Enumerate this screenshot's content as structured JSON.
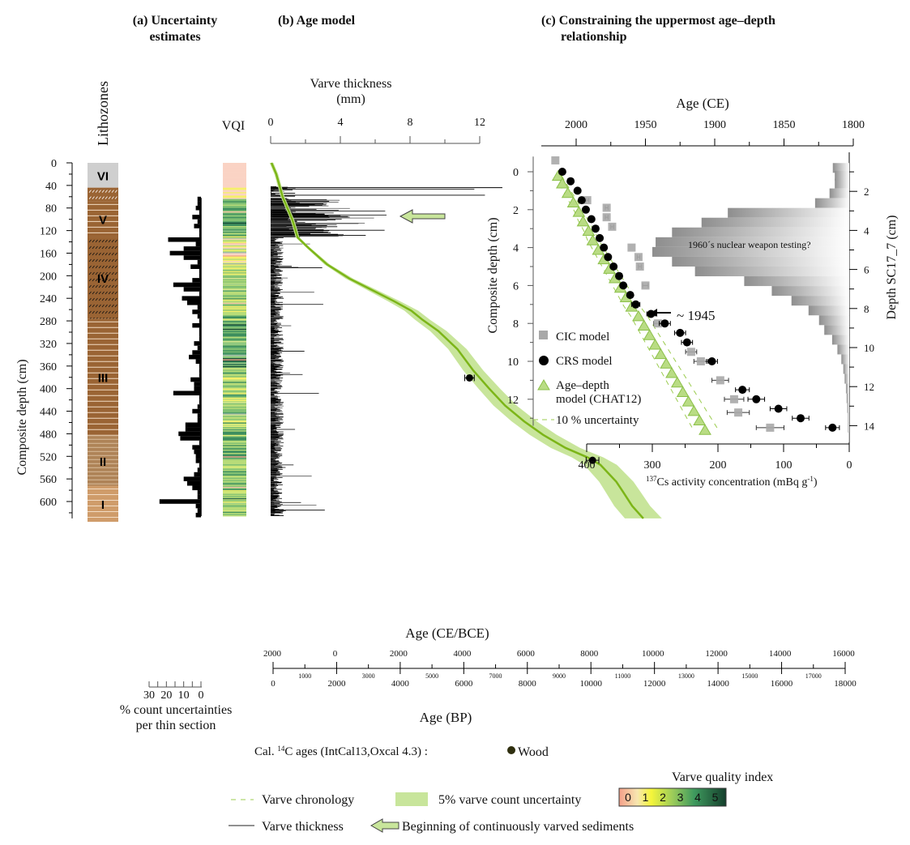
{
  "panels": {
    "a_title_line1": "(a) Uncertainty",
    "a_title_line2": "estimates",
    "b_title": "(b) Age model",
    "c_title_line1": "(c) Constraining the uppermost  age–depth",
    "c_title_line2": "relationship"
  },
  "chart_data": [
    {
      "id": "lithozones",
      "type": "table",
      "title": "Lithozones",
      "ylabel": "Composite depth (cm)",
      "ylim": [
        0,
        630
      ],
      "yticks": [
        0,
        40,
        80,
        120,
        160,
        200,
        240,
        280,
        320,
        360,
        400,
        440,
        480,
        520,
        560,
        600
      ],
      "zones": [
        {
          "label": "VI",
          "top": 0,
          "bottom": 44,
          "color": "#cfcfcf",
          "pattern": "none"
        },
        {
          "label": "",
          "top": 44,
          "bottom": 68,
          "color": "#9a6434",
          "pattern": "white-hatch"
        },
        {
          "label": "V",
          "top": 68,
          "bottom": 132,
          "color": "#9a6434",
          "pattern": "white-lines"
        },
        {
          "label": "IV",
          "top": 132,
          "bottom": 276,
          "color": "#9a6434",
          "pattern": "black-hatch"
        },
        {
          "label": "III",
          "top": 276,
          "bottom": 484,
          "color": "#9a6434",
          "pattern": "white-lines"
        },
        {
          "label": "II",
          "top": 484,
          "bottom": 572,
          "color": "#ae8357",
          "pattern": "light-lines"
        },
        {
          "label": "I",
          "top": 572,
          "bottom": 636,
          "color": "#cf9c6a",
          "pattern": "white-lines"
        }
      ]
    },
    {
      "id": "count-uncertainty",
      "type": "bar",
      "xlabel": "% count uncertainties per thin section",
      "xticks": [
        30,
        20,
        10,
        0
      ],
      "xlim": [
        30,
        0
      ],
      "values_depth_pct": [
        [
          64,
          2
        ],
        [
          72,
          2
        ],
        [
          80,
          3
        ],
        [
          88,
          1
        ],
        [
          96,
          5
        ],
        [
          104,
          2
        ],
        [
          112,
          4
        ],
        [
          120,
          1
        ],
        [
          128,
          1
        ],
        [
          136,
          19
        ],
        [
          144,
          3
        ],
        [
          152,
          10
        ],
        [
          160,
          18
        ],
        [
          168,
          10
        ],
        [
          176,
          2
        ],
        [
          184,
          6
        ],
        [
          192,
          1
        ],
        [
          200,
          1
        ],
        [
          208,
          5
        ],
        [
          216,
          16
        ],
        [
          224,
          10
        ],
        [
          232,
          1
        ],
        [
          240,
          11
        ],
        [
          248,
          8
        ],
        [
          256,
          2
        ],
        [
          264,
          5
        ],
        [
          272,
          2
        ],
        [
          280,
          1
        ],
        [
          288,
          5
        ],
        [
          296,
          1
        ],
        [
          304,
          1
        ],
        [
          312,
          1
        ],
        [
          320,
          4
        ],
        [
          328,
          2
        ],
        [
          336,
          5
        ],
        [
          344,
          7
        ],
        [
          352,
          3
        ],
        [
          360,
          1
        ],
        [
          368,
          1
        ],
        [
          376,
          1
        ],
        [
          384,
          6
        ],
        [
          392,
          4
        ],
        [
          400,
          4
        ],
        [
          408,
          16
        ],
        [
          416,
          1
        ],
        [
          424,
          1
        ],
        [
          432,
          2
        ],
        [
          440,
          5
        ],
        [
          448,
          2
        ],
        [
          456,
          2
        ],
        [
          464,
          9
        ],
        [
          472,
          9
        ],
        [
          480,
          13
        ],
        [
          488,
          12
        ],
        [
          496,
          1
        ],
        [
          504,
          5
        ],
        [
          512,
          4
        ],
        [
          520,
          3
        ],
        [
          528,
          3
        ],
        [
          536,
          1
        ],
        [
          544,
          2
        ],
        [
          552,
          4
        ],
        [
          560,
          10
        ],
        [
          568,
          8
        ],
        [
          576,
          5
        ],
        [
          584,
          2
        ],
        [
          592,
          2
        ],
        [
          600,
          24
        ],
        [
          608,
          3
        ],
        [
          616,
          2
        ],
        [
          624,
          3
        ]
      ]
    },
    {
      "id": "vqi",
      "type": "heatmap",
      "title": "VQI",
      "scale": [
        0,
        5
      ],
      "note": "Varve quality index stripes by depth, 0 = unvarved (pink) to 5 = excellent (dark green)",
      "segments_top_to_bottom": [
        {
          "from": 0,
          "to": 42,
          "vqi": 0
        },
        {
          "from": 42,
          "to": 64,
          "vqi": 0.5
        },
        {
          "from": 64,
          "to": 130,
          "vqi": 3.5
        },
        {
          "from": 130,
          "to": 200,
          "vqi": 1.5
        },
        {
          "from": 200,
          "to": 280,
          "vqi": 2.5
        },
        {
          "from": 280,
          "to": 380,
          "vqi": 3.5
        },
        {
          "from": 380,
          "to": 460,
          "vqi": 2.5
        },
        {
          "from": 460,
          "to": 560,
          "vqi": 3.0
        },
        {
          "from": 560,
          "to": 626,
          "vqi": 2.5
        }
      ]
    },
    {
      "id": "age-model",
      "type": "line",
      "title": "(b) Age model",
      "x_top_label": "Varve thickness (mm)",
      "x_top_ticks": [
        0,
        4,
        8,
        12
      ],
      "x_top_lim": [
        0,
        12
      ],
      "xlabel_ce_bce": "Age (CE/BCE)",
      "ce_bce_ticks": [
        "2000",
        "0",
        "2000",
        "4000",
        "6000",
        "8000",
        "10000",
        "12000",
        "14000",
        "16000"
      ],
      "xlabel_bp": "Age (BP)",
      "bp_major_ticks": [
        0,
        2000,
        4000,
        6000,
        8000,
        10000,
        12000,
        14000,
        16000,
        18000
      ],
      "bp_minor_ticks": [
        1000,
        3000,
        5000,
        7000,
        9000,
        11000,
        13000,
        15000,
        17000
      ],
      "xlim_bp": [
        0,
        18000
      ],
      "ylim_depth": [
        0,
        630
      ],
      "varve_chronology": [
        [
          -50,
          0
        ],
        [
          100,
          20
        ],
        [
          200,
          40
        ],
        [
          300,
          60
        ],
        [
          450,
          80
        ],
        [
          600,
          100
        ],
        [
          700,
          118
        ],
        [
          770,
          132
        ],
        [
          1100,
          150
        ],
        [
          1700,
          180
        ],
        [
          2400,
          205
        ],
        [
          3100,
          225
        ],
        [
          3800,
          245
        ],
        [
          4350,
          262
        ],
        [
          4700,
          278
        ],
        [
          5200,
          298
        ],
        [
          5800,
          330
        ],
        [
          6300,
          368
        ],
        [
          6800,
          400
        ],
        [
          7300,
          430
        ],
        [
          7900,
          458
        ],
        [
          8500,
          482
        ],
        [
          9200,
          505
        ],
        [
          9900,
          522
        ],
        [
          10300,
          535
        ],
        [
          10800,
          565
        ],
        [
          11000,
          582
        ],
        [
          11300,
          608
        ],
        [
          11650,
          630
        ]
      ],
      "uncertainty_pct": 5,
      "radiocarbon_ages": [
        {
          "material": "Wood",
          "age_bp": 6180,
          "depth": 381,
          "err_bp": 150
        },
        {
          "material": "Wood",
          "age_bp": 10050,
          "depth": 527,
          "err_bp": 200
        }
      ],
      "varve_thickness_max_mm": 13,
      "continuous_varves_start_depth": 68
    },
    {
      "id": "cs137",
      "type": "scatter",
      "title": "(c) Constraining the uppermost age–depth relationship",
      "x_top_label": "Age (CE)",
      "x_top_ticks": [
        2000,
        1950,
        1900,
        1850,
        1800
      ],
      "x_top_lim": [
        2020,
        1800
      ],
      "xlabel_bottom": "137Cs activity concentration (mBq g-1)",
      "x_bottom_ticks": [
        400,
        300,
        200,
        100,
        0
      ],
      "x_bottom_lim": [
        400,
        0
      ],
      "ylabel_left": "Composite depth (cm)",
      "yticks_left": [
        0,
        2,
        4,
        6,
        8,
        10,
        12
      ],
      "ylim_left": [
        -0.8,
        13.3
      ],
      "ylabel_right": "Depth SC17_7 (cm)",
      "yticks_right": [
        2,
        4,
        6,
        8,
        10,
        12,
        14
      ],
      "series": [
        {
          "name": "CIC model",
          "points_age_depth_err": [
            [
              2015,
              -0.6,
              0
            ],
            [
              1992,
              1.5,
              1
            ],
            [
              1978,
              1.9,
              1
            ],
            [
              1978,
              2.4,
              1
            ],
            [
              1974,
              2.9,
              1
            ],
            [
              1960,
              4,
              0
            ],
            [
              1955,
              4.5,
              1
            ],
            [
              1954,
              5,
              1
            ],
            [
              1950,
              6,
              2
            ],
            [
              1941,
              8,
              3
            ],
            [
              1917,
              9.5,
              4
            ],
            [
              1910,
              10,
              5
            ],
            [
              1896,
              11,
              6
            ],
            [
              1886,
              12,
              7
            ],
            [
              1883,
              12.7,
              8
            ],
            [
              1860,
              13.5,
              10
            ]
          ]
        },
        {
          "name": "CRS model",
          "points_age_depth_err": [
            [
              2010,
              0,
              0
            ],
            [
              2004,
              0.5,
              0
            ],
            [
              1999,
              1,
              0
            ],
            [
              1996,
              1.5,
              0
            ],
            [
              1993,
              2,
              0
            ],
            [
              1989,
              2.5,
              0
            ],
            [
              1986,
              3,
              0
            ],
            [
              1983,
              3.5,
              0
            ],
            [
              1980,
              4,
              0
            ],
            [
              1977,
              4.5,
              0
            ],
            [
              1973,
              5,
              0
            ],
            [
              1969,
              5.5,
              0
            ],
            [
              1966,
              6,
              0
            ],
            [
              1961,
              6.5,
              0
            ],
            [
              1957,
              7,
              3
            ],
            [
              1946,
              7.5,
              3
            ],
            [
              1936,
              8,
              4
            ],
            [
              1925,
              8.5,
              4
            ],
            [
              1920,
              9,
              4
            ],
            [
              1902,
              10,
              4
            ],
            [
              1880,
              11.5,
              5
            ],
            [
              1870,
              12,
              6
            ],
            [
              1854,
              12.5,
              6
            ],
            [
              1838,
              13,
              6
            ],
            [
              1815,
              13.5,
              5
            ]
          ]
        },
        {
          "name": "Age–depth model (CHAT12)",
          "points_age_depth": [
            [
              2013,
              0.2
            ],
            [
              2010,
              0.6
            ],
            [
              2006,
              1.1
            ],
            [
              2002,
              1.6
            ],
            [
              1998,
              2.1
            ],
            [
              1995,
              2.6
            ],
            [
              1991,
              3.1
            ],
            [
              1988,
              3.6
            ],
            [
              1984,
              4.1
            ],
            [
              1980,
              4.6
            ],
            [
              1976,
              5.1
            ],
            [
              1972,
              5.6
            ],
            [
              1968,
              6.1
            ],
            [
              1964,
              6.6
            ],
            [
              1960,
              7.1
            ],
            [
              1955,
              7.6
            ],
            [
              1951,
              8.1
            ],
            [
              1947,
              8.6
            ],
            [
              1943,
              9.1
            ],
            [
              1939,
              9.6
            ],
            [
              1935,
              10.1
            ],
            [
              1931,
              10.6
            ],
            [
              1927,
              11.1
            ],
            [
              1923,
              11.6
            ],
            [
              1919,
              12.1
            ],
            [
              1915,
              12.6
            ],
            [
              1911,
              13.1
            ],
            [
              1907,
              13.6
            ]
          ]
        },
        {
          "name": "10 % uncertainty",
          "style": "dashed"
        }
      ],
      "cs137_profile_depth_activity": [
        [
          0.8,
          25
        ],
        [
          1.2,
          22
        ],
        [
          1.6,
          22
        ],
        [
          2.1,
          30
        ],
        [
          2.6,
          52
        ],
        [
          3.1,
          185
        ],
        [
          3.6,
          225
        ],
        [
          4.1,
          270
        ],
        [
          4.6,
          295
        ],
        [
          5.1,
          300
        ],
        [
          5.6,
          270
        ],
        [
          6.1,
          235
        ],
        [
          6.6,
          160
        ],
        [
          7.1,
          118
        ],
        [
          7.6,
          88
        ],
        [
          8.1,
          62
        ],
        [
          8.6,
          46
        ],
        [
          9.1,
          38
        ],
        [
          9.6,
          26
        ],
        [
          10.1,
          18
        ],
        [
          10.6,
          12
        ],
        [
          11.1,
          9
        ],
        [
          11.6,
          7
        ],
        [
          12.1,
          5
        ],
        [
          12.6,
          4
        ],
        [
          13.1,
          3
        ],
        [
          13.6,
          2
        ],
        [
          14.1,
          2
        ],
        [
          14.6,
          1
        ]
      ],
      "annotations": [
        "1960´s nuclear weapon testing?",
        "~ 1945"
      ]
    }
  ],
  "axes_text": {
    "lithozones": "Lithozones",
    "composite_depth": "Composite depth (cm)",
    "vqi": "VQI",
    "varve_thickness_l1": "Varve thickness",
    "varve_thickness_l2": "(mm)",
    "age_ce_bce": "Age (CE/BCE)",
    "age_bp": "Age (BP)",
    "count_unc_l1": "% count uncertainties",
    "count_unc_l2": "per thin section",
    "age_ce": "Age (CE)",
    "composite_depth_c": "Composite depth (cm)",
    "depth_sc": "Depth SC17_7 (cm)",
    "cs_sup": "137",
    "cs_main": "Cs activity concentration (mBq g",
    "cs_exp": "-1",
    "cs_close": ")",
    "nuclear": "1960´s nuclear weapon testing?",
    "approx1945": "~ 1945"
  },
  "legend_c": {
    "cic": "CIC model",
    "crs": "CRS model",
    "chat_l1": "Age–depth",
    "chat_l2": "model (CHAT12)",
    "unc": "10 % uncertainty"
  },
  "legend": {
    "c14_prefix": "Cal. ",
    "c14_sup": "14",
    "c14_rest": "C ages (IntCal13,Oxcal 4.3) :",
    "wood": "Wood",
    "varve_chronology": "Varve chronology",
    "varve_unc": "5% varve count uncertainty",
    "vqi_title": "Varve quality index",
    "vqi_levels": [
      "0",
      "1",
      "2",
      "3",
      "4",
      "5"
    ],
    "varve_thickness": "Varve thickness",
    "arrow_label": "Beginning of continuously varved sediments"
  },
  "colors": {
    "green_line": "#7cb518",
    "green_band": "#c8e59b",
    "triangle_fill": "#b9dc84",
    "cic_gray": "#a8a8a8",
    "brown": "#9a6434"
  }
}
